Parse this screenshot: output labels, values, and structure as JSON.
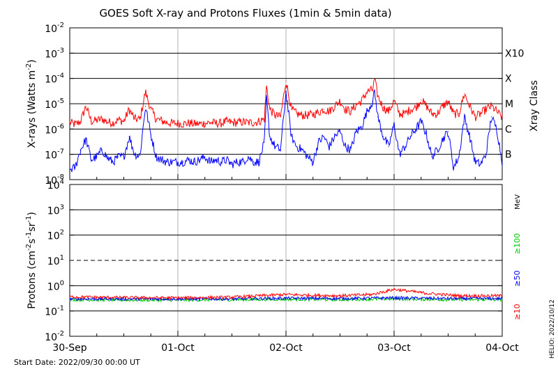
{
  "chart_data": [
    {
      "type": "line",
      "panel": "xray",
      "title": "GOES Soft X-ray and Protons Fluxes   (1min & 5min data)",
      "ylabel_main": "X-rays (Watts m",
      "ylabel_exp": "-2",
      "ylabel_end": ")",
      "yscale": "log",
      "ylim": [
        1e-08,
        0.01
      ],
      "yticks": [
        {
          "base": "10",
          "exp": "-2",
          "value": 0.01
        },
        {
          "base": "10",
          "exp": "-3",
          "value": 0.001
        },
        {
          "base": "10",
          "exp": "-4",
          "value": 0.0001
        },
        {
          "base": "10",
          "exp": "-5",
          "value": 1e-05
        },
        {
          "base": "10",
          "exp": "-6",
          "value": 1e-06
        },
        {
          "base": "10",
          "exp": "-7",
          "value": 1e-07
        },
        {
          "base": "10",
          "exp": "-8",
          "value": 1e-08
        }
      ],
      "class_axis_label": "Xray Class",
      "class_labels": [
        {
          "label": "X10",
          "value": 0.001
        },
        {
          "label": "X",
          "value": 0.0001
        },
        {
          "label": "M",
          "value": 1e-05
        },
        {
          "label": "C",
          "value": 1e-06
        },
        {
          "label": "B",
          "value": 1e-07
        }
      ],
      "xlim_days": [
        0,
        4
      ],
      "series": [
        {
          "color": "#ff0000",
          "x": [
            0,
            0.05,
            0.1,
            0.15,
            0.2,
            0.25,
            0.3,
            0.35,
            0.4,
            0.45,
            0.5,
            0.55,
            0.6,
            0.65,
            0.7,
            0.75,
            0.8,
            0.85,
            0.9,
            0.95,
            1.0,
            1.05,
            1.1,
            1.15,
            1.2,
            1.25,
            1.3,
            1.35,
            1.4,
            1.45,
            1.5,
            1.55,
            1.6,
            1.65,
            1.7,
            1.75,
            1.8,
            1.82,
            1.85,
            1.9,
            1.95,
            2.0,
            2.05,
            2.1,
            2.15,
            2.2,
            2.25,
            2.3,
            2.35,
            2.4,
            2.45,
            2.5,
            2.55,
            2.6,
            2.65,
            2.7,
            2.75,
            2.8,
            2.82,
            2.85,
            2.9,
            2.95,
            3.0,
            3.05,
            3.1,
            3.15,
            3.2,
            3.25,
            3.3,
            3.35,
            3.4,
            3.45,
            3.5,
            3.55,
            3.6,
            3.65,
            3.7,
            3.75,
            3.8,
            3.85,
            3.9,
            3.95,
            4.0
          ],
          "y": [
            1.8e-06,
            1.5e-06,
            2e-06,
            8e-06,
            2e-06,
            2.2e-06,
            2.5e-06,
            1.9e-06,
            1.8e-06,
            2.3e-06,
            2e-06,
            6e-06,
            2.5e-06,
            2.4e-06,
            3e-05,
            6e-06,
            2.5e-06,
            2.1e-06,
            1.8e-06,
            1.7e-06,
            1.7e-06,
            1.6e-06,
            1.7e-06,
            1.6e-06,
            1.6e-06,
            1.7e-06,
            1.8e-06,
            1.7e-06,
            1.7e-06,
            2e-06,
            1.8e-06,
            1.8e-06,
            1.9e-06,
            1.8e-06,
            1.8e-06,
            2e-06,
            2.5e-06,
            5e-05,
            6e-06,
            3.5e-06,
            3e-06,
            8e-05,
            6e-06,
            4e-06,
            3.5e-06,
            3.5e-06,
            3.8e-06,
            4.5e-06,
            6e-06,
            5e-06,
            8e-06,
            1.3e-05,
            6e-06,
            5e-06,
            9e-06,
            1.3e-05,
            3e-05,
            3.5e-05,
            9e-05,
            2e-05,
            7e-06,
            5e-06,
            1.3e-05,
            4e-06,
            4e-06,
            6e-06,
            7e-06,
            1.4e-05,
            8e-06,
            4e-06,
            4e-06,
            8e-06,
            1.2e-05,
            4e-06,
            4e-06,
            2.5e-05,
            8e-06,
            3e-06,
            4e-06,
            6e-06,
            8e-06,
            5e-06,
            2.8e-06
          ]
        },
        {
          "color": "#0000ff",
          "x": [
            0,
            0.05,
            0.1,
            0.15,
            0.2,
            0.25,
            0.3,
            0.35,
            0.4,
            0.45,
            0.5,
            0.55,
            0.6,
            0.65,
            0.7,
            0.75,
            0.8,
            0.85,
            0.9,
            0.95,
            1.0,
            1.05,
            1.1,
            1.15,
            1.2,
            1.25,
            1.3,
            1.35,
            1.4,
            1.45,
            1.5,
            1.55,
            1.6,
            1.65,
            1.7,
            1.75,
            1.8,
            1.82,
            1.85,
            1.9,
            1.95,
            2.0,
            2.05,
            2.1,
            2.15,
            2.2,
            2.25,
            2.3,
            2.35,
            2.4,
            2.45,
            2.5,
            2.55,
            2.6,
            2.65,
            2.7,
            2.75,
            2.8,
            2.82,
            2.85,
            2.9,
            2.95,
            3.0,
            3.05,
            3.1,
            3.15,
            3.2,
            3.25,
            3.3,
            3.35,
            3.4,
            3.45,
            3.5,
            3.55,
            3.6,
            3.65,
            3.7,
            3.75,
            3.8,
            3.85,
            3.9,
            3.95,
            4.0
          ],
          "y": [
            2.5e-08,
            3e-08,
            1.5e-07,
            4e-07,
            6e-08,
            8e-08,
            1.5e-07,
            7e-08,
            5e-08,
            8e-08,
            8e-08,
            5e-07,
            1e-07,
            9e-08,
            8e-06,
            6e-07,
            8e-08,
            6e-08,
            5e-08,
            5e-08,
            5e-08,
            5e-08,
            6e-08,
            5e-08,
            6e-08,
            8e-08,
            5e-08,
            6e-08,
            5e-08,
            6e-08,
            4e-08,
            5e-08,
            5e-08,
            8e-08,
            5e-08,
            5e-08,
            3e-07,
            1.8e-05,
            5e-07,
            2e-07,
            1.5e-07,
            3e-05,
            5e-07,
            2e-07,
            1.5e-07,
            8e-08,
            5e-08,
            3e-07,
            5e-07,
            2e-07,
            5e-07,
            8e-07,
            2e-07,
            1.5e-07,
            8e-07,
            1.2e-06,
            5e-06,
            1.2e-05,
            3e-05,
            3e-06,
            5e-07,
            2e-07,
            1.5e-06,
            1e-07,
            2e-07,
            5e-07,
            1e-06,
            2e-06,
            6e-07,
            8e-08,
            1.5e-07,
            4e-07,
            8e-07,
            3e-08,
            8e-08,
            3e-06,
            5e-07,
            5e-08,
            4e-08,
            1e-07,
            3e-06,
            1e-06,
            5e-08
          ]
        }
      ]
    },
    {
      "type": "line",
      "panel": "protons",
      "ylabel_main": "Protons (cm",
      "ylabel_exp1": "-2",
      "ylabel_mid": "s",
      "ylabel_exp2": "-1",
      "ylabel_mid2": "sr",
      "ylabel_exp3": "-1",
      "ylabel_end": ")",
      "yscale": "log",
      "ylim": [
        0.01,
        10000.0
      ],
      "yticks": [
        {
          "base": "10",
          "exp": "4",
          "value": 10000.0
        },
        {
          "base": "10",
          "exp": "3",
          "value": 1000.0
        },
        {
          "base": "10",
          "exp": "2",
          "value": 100.0
        },
        {
          "base": "10",
          "exp": "1",
          "value": 10.0
        },
        {
          "base": "10",
          "exp": "0",
          "value": 1.0
        },
        {
          "base": "10",
          "exp": "-1",
          "value": 0.1
        },
        {
          "base": "10",
          "exp": "-2",
          "value": 0.01
        }
      ],
      "threshold_value": 10,
      "energy_unit": "MeV",
      "channels": [
        {
          "label": "≥100",
          "color": "#00cc00"
        },
        {
          "label": "≥50",
          "color": "#0000ff"
        },
        {
          "label": "≥10",
          "color": "#ff0000"
        }
      ],
      "xtick_labels": [
        "30-Sep",
        "01-Oct",
        "02-Oct",
        "03-Oct",
        "04-Oct"
      ],
      "xlim_days": [
        0,
        4
      ],
      "series": [
        {
          "color": "#00cc00",
          "x": [
            0,
            0.5,
            1,
            1.5,
            2,
            2.5,
            3,
            3.5,
            4
          ],
          "y": [
            0.28,
            0.27,
            0.27,
            0.28,
            0.29,
            0.28,
            0.3,
            0.28,
            0.28
          ]
        },
        {
          "color": "#0000ff",
          "x": [
            0,
            0.5,
            1,
            1.5,
            2,
            2.5,
            3,
            3.5,
            4
          ],
          "y": [
            0.3,
            0.3,
            0.3,
            0.3,
            0.32,
            0.31,
            0.33,
            0.31,
            0.31
          ]
        },
        {
          "color": "#ff0000",
          "x": [
            0,
            0.5,
            1,
            1.5,
            2,
            2.2,
            2.5,
            2.8,
            3,
            3.3,
            3.6,
            4
          ],
          "y": [
            0.36,
            0.34,
            0.33,
            0.35,
            0.45,
            0.42,
            0.4,
            0.45,
            0.72,
            0.5,
            0.4,
            0.4
          ]
        }
      ]
    }
  ],
  "footer": {
    "start_date": "Start Date: 2022/09/30 00:00 UT",
    "credit": "HELIO: 2022/10/12"
  },
  "colors": {
    "grid_gray": "#b0b0b0",
    "axis": "#000000"
  }
}
